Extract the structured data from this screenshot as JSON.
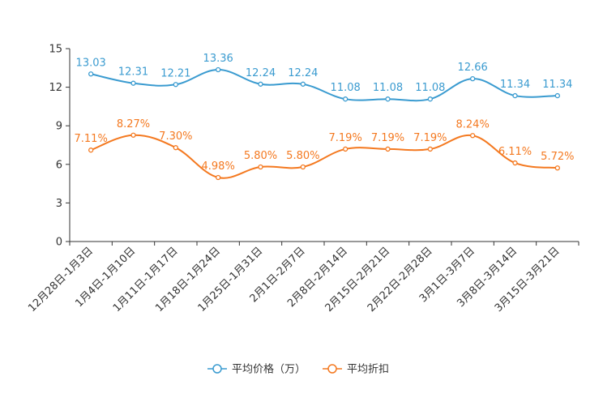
{
  "chart_data": {
    "type": "line",
    "title": "",
    "xlabel": "",
    "ylabel": "",
    "ylim": [
      0,
      15
    ],
    "yticks": [
      0,
      3,
      6,
      9,
      12,
      15
    ],
    "grid": false,
    "legend_position": "bottom-center",
    "categories": [
      "12月28日-1月3日",
      "1月4日-1月10日",
      "1月11日-1月17日",
      "1月18日-1月24日",
      "1月25日-1月31日",
      "2月1日-2月7日",
      "2月8日-2月14日",
      "2月15日-2月21日",
      "2月22日-2月28日",
      "3月1日-3月7日",
      "3月8日-3月14日",
      "3月15日-3月21日"
    ],
    "series": [
      {
        "name": "平均价格（万）",
        "color": "#3a9bd0",
        "values": [
          13.03,
          12.31,
          12.21,
          13.36,
          12.24,
          12.24,
          11.08,
          11.08,
          11.08,
          12.66,
          11.34,
          11.34
        ],
        "labels": [
          "13.03",
          "12.31",
          "12.21",
          "13.36",
          "12.24",
          "12.24",
          "11.08",
          "11.08",
          "11.08",
          "12.66",
          "11.34",
          "11.34"
        ]
      },
      {
        "name": "平均折扣",
        "color": "#f47920",
        "values": [
          7.11,
          8.27,
          7.3,
          4.98,
          5.8,
          5.8,
          7.19,
          7.19,
          7.19,
          8.24,
          6.11,
          5.72
        ],
        "labels": [
          "7.11%",
          "8.27%",
          "7.30%",
          "4.98%",
          "5.80%",
          "5.80%",
          "7.19%",
          "7.19%",
          "7.19%",
          "8.24%",
          "6.11%",
          "5.72%"
        ]
      }
    ]
  }
}
